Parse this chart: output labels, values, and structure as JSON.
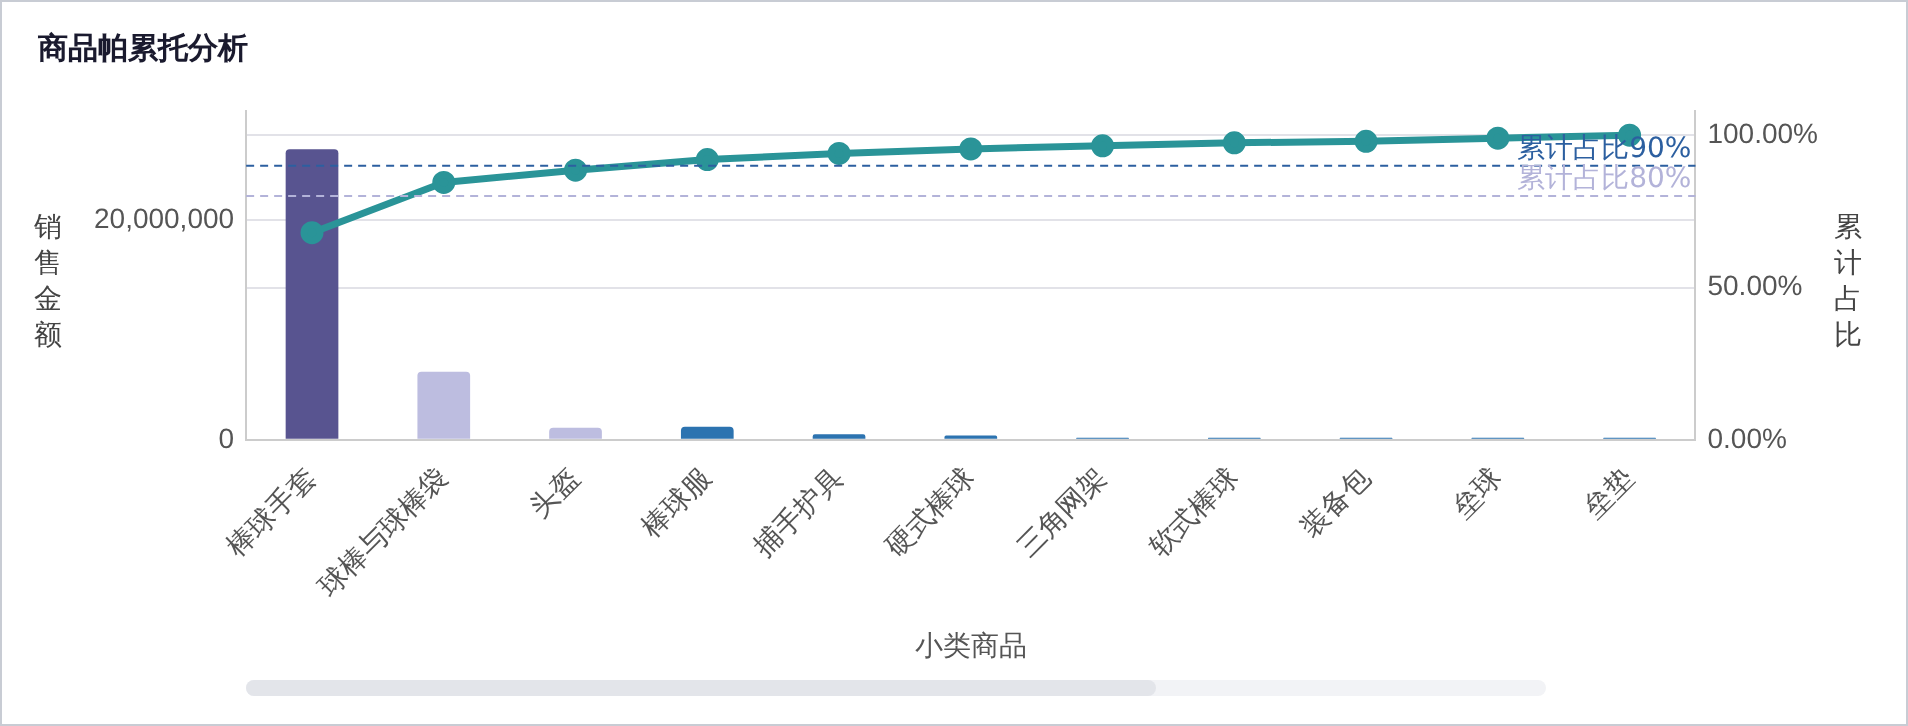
{
  "chart_data": {
    "type": "bar",
    "title": "商品帕累托分析",
    "xlabel": "小类商品",
    "ylabel": "销售金额",
    "y2label": "累计占比",
    "categories": [
      "棒球手套",
      "球棒与球棒袋",
      "头盔",
      "棒球服",
      "捕手护具",
      "硬式棒球",
      "三角网架",
      "软式棒球",
      "装备包",
      "垒球",
      "垒垫"
    ],
    "series": [
      {
        "colors": [
          "#585490",
          "#bdbde0",
          "#bdbde0",
          "#2c73b0",
          "#2c73b0",
          "#2c73b0",
          "#2c73b0",
          "#2c73b0",
          "#2c73b0",
          "#2c73b0",
          "#2c73b0"
        ],
        "values": [
          26500000,
          6200000,
          1100000,
          1200000,
          500000,
          400000,
          200000,
          200000,
          200000,
          200000,
          200000
        ]
      },
      {
        "type": "line",
        "axis": "y2",
        "color": "#2a9498",
        "values": [
          68,
          84.5,
          88.5,
          92,
          94,
          95.5,
          96.5,
          97.5,
          98,
          99,
          100
        ]
      }
    ],
    "ylim": [
      0,
      30000000
    ],
    "yticks": [
      0,
      {
        "value": 20000000,
        "label": "20,000,000"
      }
    ],
    "y2lim": [
      0,
      108
    ],
    "y2ticks": [
      {
        "value": 0,
        "label": "0.00%"
      },
      {
        "value": 50,
        "label": "50.00%"
      },
      {
        "value": 100,
        "label": "100.00%"
      }
    ],
    "ref_lines": [
      {
        "axis": "y2",
        "value": 90,
        "label": "累计占比90%",
        "color": "#2c5fa0",
        "line_style": "dashed"
      },
      {
        "axis": "y2",
        "value": 80,
        "label": "累计占比80%",
        "color": "#b3b3d9",
        "line_style": "dashed"
      }
    ],
    "grid": true,
    "legend": false,
    "marker": "circle",
    "line_style": "solid"
  }
}
